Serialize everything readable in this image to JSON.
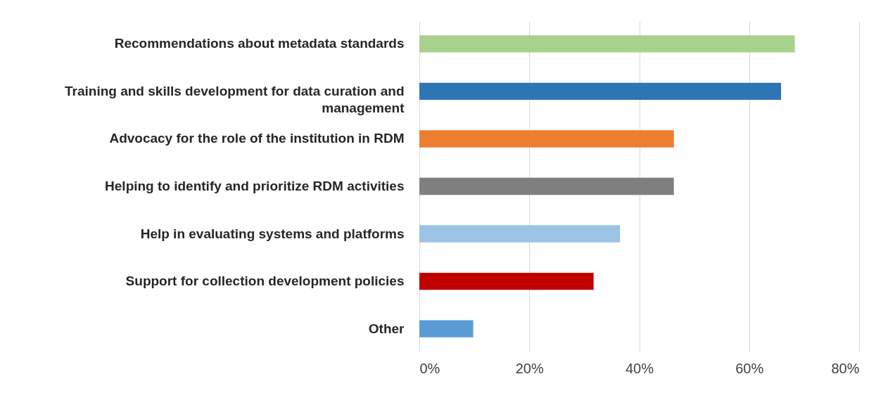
{
  "chart_data": {
    "type": "bar",
    "orientation": "horizontal",
    "categories": [
      "Recommendations about metadata standards",
      "Training and skills development for data curation and management",
      "Advocacy for the role of the institution in RDM",
      "Helping to identify and prioritize RDM activities",
      "Help in evaluating systems and platforms",
      "Support for collection development policies",
      "Other"
    ],
    "values": [
      68.3,
      65.8,
      46.3,
      46.3,
      36.5,
      31.7,
      9.8
    ],
    "colors": [
      "#a9d18e",
      "#2e75b6",
      "#ed7d31",
      "#7f7f7f",
      "#9dc3e6",
      "#c00000",
      "#5b9bd5"
    ],
    "xlim": [
      0,
      80
    ],
    "xticks": [
      {
        "value": 0,
        "label": "0%"
      },
      {
        "value": 20,
        "label": "20%"
      },
      {
        "value": 40,
        "label": "40%"
      },
      {
        "value": 60,
        "label": "60%"
      },
      {
        "value": 80,
        "label": "80%"
      }
    ],
    "grid": "x"
  }
}
